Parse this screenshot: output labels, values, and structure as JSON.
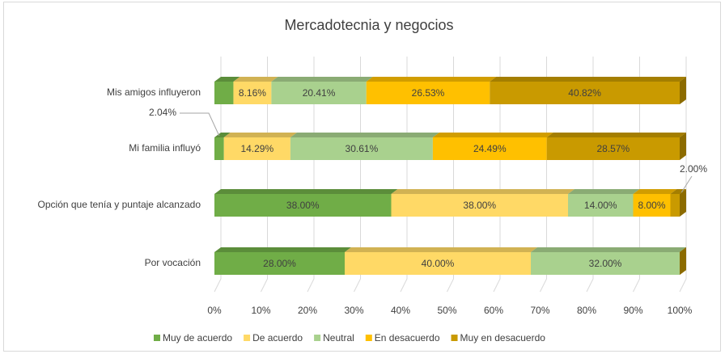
{
  "chart_data": {
    "type": "bar",
    "orientation": "horizontal",
    "stacked": true,
    "title": "Mercadotecnia y negocios",
    "categories": [
      "Mis amigos influyeron",
      "Mi familia influyó",
      "Opción que tenía y puntaje alcanzado",
      "Por  vocación"
    ],
    "series": [
      {
        "name": "Muy de acuerdo",
        "color": "#70ad47",
        "values": [
          4.08,
          2.04,
          38,
          28
        ],
        "value_labels": [
          null,
          "2.04%",
          "38.00%",
          "28.00%"
        ]
      },
      {
        "name": "De acuerdo",
        "color": "#ffd966",
        "values": [
          8.16,
          14.29,
          38,
          40
        ],
        "value_labels": [
          "8.16%",
          "14.29%",
          "38.00%",
          "40.00%"
        ]
      },
      {
        "name": "Neutral",
        "color": "#a9d18e",
        "values": [
          20.41,
          30.61,
          14,
          32
        ],
        "value_labels": [
          "20.41%",
          "30.61%",
          "14.00%",
          "32.00%"
        ]
      },
      {
        "name": "En desacuerdo",
        "color": "#ffc000",
        "values": [
          26.53,
          24.49,
          8,
          0
        ],
        "value_labels": [
          "26.53%",
          "24.49%",
          "8.00%",
          null
        ]
      },
      {
        "name": "Muy en desacuerdo",
        "color": "#c99a00",
        "values": [
          40.82,
          28.57,
          2,
          0
        ],
        "value_labels": [
          "40.82%",
          "28.57%",
          "2.00%",
          null
        ]
      }
    ],
    "xlim": [
      0,
      100
    ],
    "xticks": [
      {
        "value": 0,
        "label": "0%"
      },
      {
        "value": 10,
        "label": "10%"
      },
      {
        "value": 20,
        "label": "20%"
      },
      {
        "value": 30,
        "label": "30%"
      },
      {
        "value": 40,
        "label": "40%"
      },
      {
        "value": 50,
        "label": "50%"
      },
      {
        "value": 60,
        "label": "60%"
      },
      {
        "value": 70,
        "label": "70%"
      },
      {
        "value": 80,
        "label": "80%"
      },
      {
        "value": 90,
        "label": "90%"
      },
      {
        "value": 100,
        "label": "100%"
      }
    ],
    "grid": true,
    "legend": "bottom"
  }
}
